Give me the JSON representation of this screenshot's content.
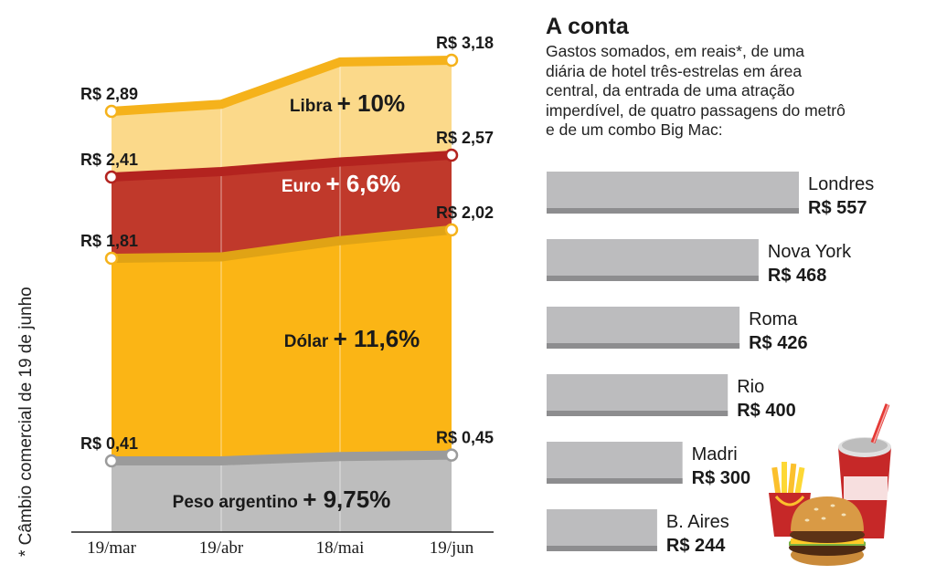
{
  "chart_data": [
    {
      "type": "area",
      "categories": [
        "19/mar",
        "19/abr",
        "18/mai",
        "19/jun"
      ],
      "ylabel": "* Câmbio comercial de 19 de junho",
      "series": [
        {
          "name": "Libra",
          "change_label": "Libra",
          "change_value": "+ 10%",
          "values": [
            2.89,
            2.93,
            3.17,
            3.18
          ],
          "color": "#f5b21b",
          "start_label": "R$ 2,89",
          "end_label": "R$ 3,18"
        },
        {
          "name": "Euro",
          "change_label": "Euro",
          "change_value": "+ 6,6%",
          "values": [
            2.41,
            2.45,
            2.52,
            2.57
          ],
          "color": "#b3231f",
          "start_label": "R$ 2,41",
          "end_label": "R$ 2,57"
        },
        {
          "name": "Dólar",
          "change_label": "Dólar",
          "change_value": "+ 11,6%",
          "values": [
            1.81,
            1.82,
            1.94,
            2.02
          ],
          "color": "#f5b21b",
          "start_label": "R$ 1,81",
          "end_label": "R$ 2,02"
        },
        {
          "name": "Peso argentino",
          "change_label": "Peso argentino",
          "change_value": "+ 9,75%",
          "values": [
            0.41,
            0.41,
            0.44,
            0.45
          ],
          "color": "#9b9b9b",
          "start_label": "R$ 0,41",
          "end_label": "R$ 0,45"
        }
      ]
    },
    {
      "type": "bar",
      "title": "A conta",
      "subtitle": "Gastos somados, em reais*, de uma diária de hotel três-estrelas em área central, da entrada de uma atração imperdível, de quatro passagens do metrô e de um combo Big Mac:",
      "categories": [
        "Londres",
        "Nova York",
        "Roma",
        "Rio",
        "Madri",
        "B. Aires"
      ],
      "values": [
        557,
        468,
        426,
        400,
        300,
        244
      ],
      "value_labels": [
        "R$ 557",
        "R$ 468",
        "R$ 426",
        "R$ 400",
        "R$ 300",
        "R$ 244"
      ],
      "color": "#bcbcbe"
    }
  ],
  "colors": {
    "libra_fill": "#fbd98a",
    "libra_line": "#f5b21b",
    "euro_fill": "#c0392b",
    "euro_line": "#b3231f",
    "dolar_fill": "#fbb515",
    "peso_fill": "#bdbdbd",
    "peso_line": "#9b9b9b"
  },
  "icons": {
    "food": "big-mac-combo-icon"
  }
}
